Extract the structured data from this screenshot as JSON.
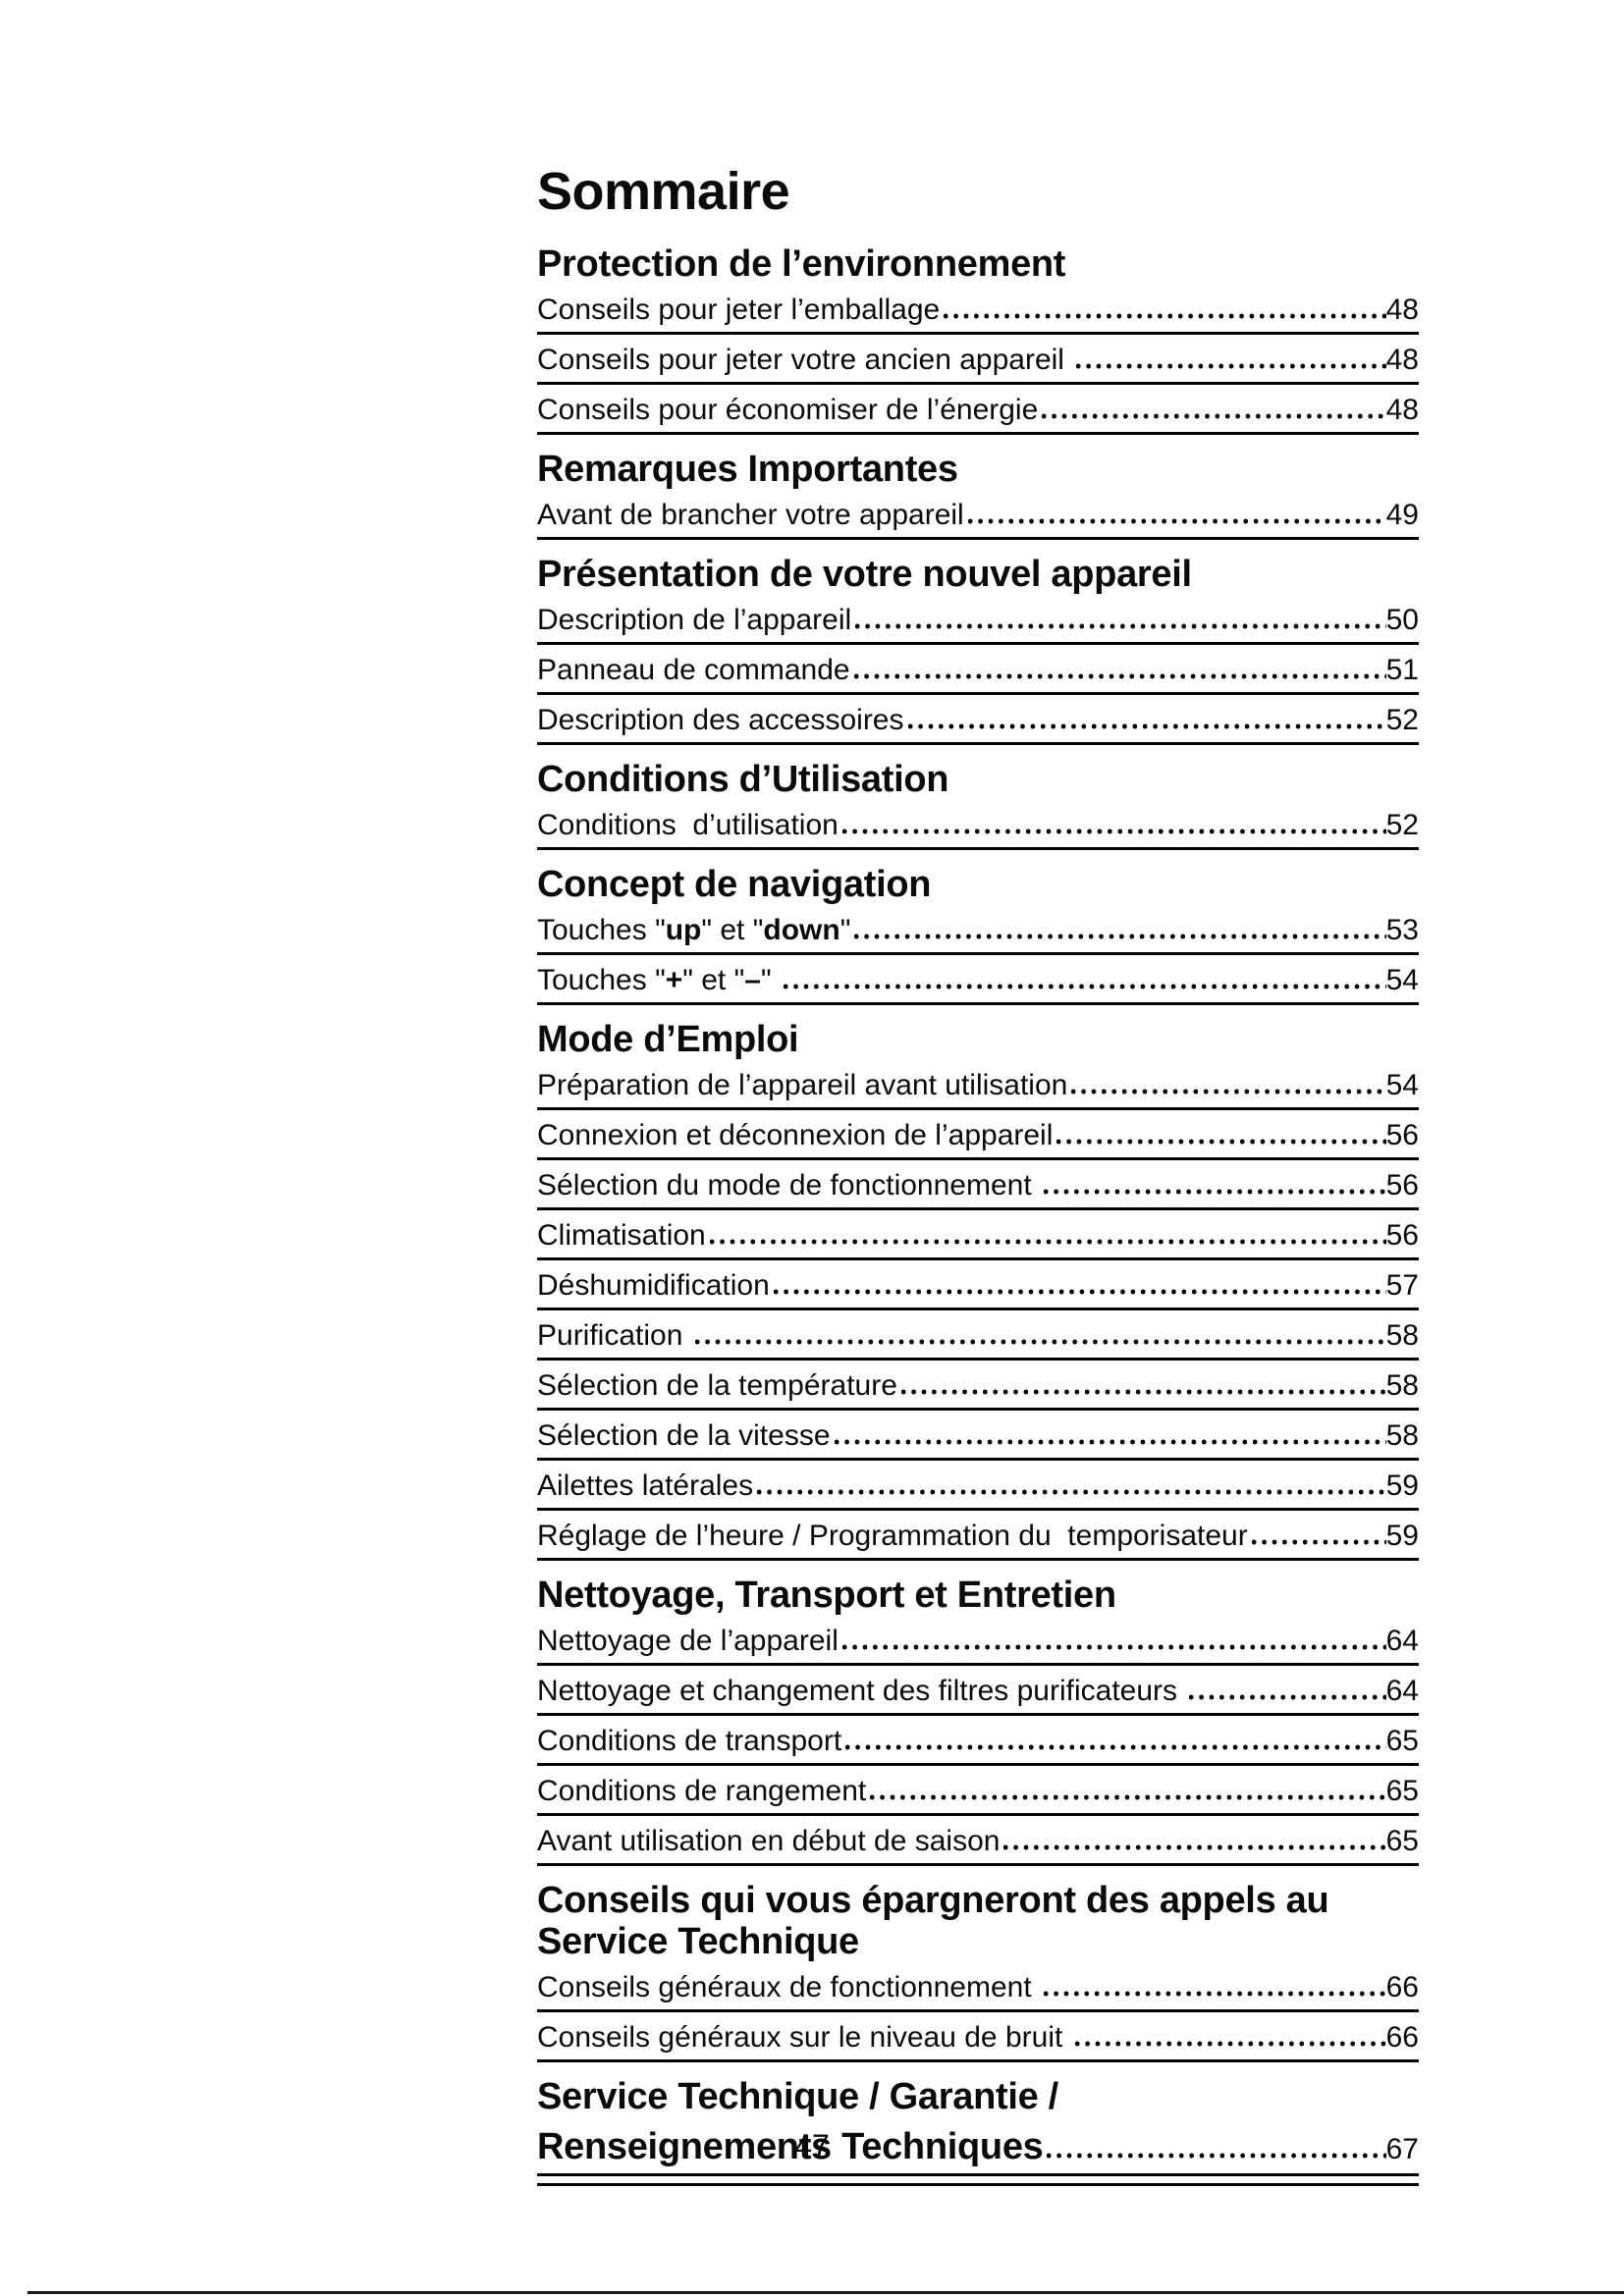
{
  "page": {
    "title": "Sommaire",
    "folio": "47"
  },
  "colors": {
    "ink": "#0b0b0b",
    "rule": "#000000",
    "paper": "#ffffff"
  },
  "toc": {
    "rows": [
      {
        "type": "heading",
        "text": "Protection de l’environnement"
      },
      {
        "type": "entry",
        "label": "Conseils pour jeter l’emballage",
        "page": "48"
      },
      {
        "type": "entry",
        "label": "Conseils pour jeter votre ancien appareil ",
        "page": "48"
      },
      {
        "type": "entry",
        "label": "Conseils pour économiser de l’énergie",
        "page": "48"
      },
      {
        "type": "heading",
        "text": "Remarques Importantes"
      },
      {
        "type": "entry",
        "label": "Avant de brancher votre appareil",
        "page": "49"
      },
      {
        "type": "heading",
        "text": "Présentation de votre nouvel appareil"
      },
      {
        "type": "entry",
        "label": "Description de l’appareil",
        "page": "50"
      },
      {
        "type": "entry",
        "label": "Panneau de commande",
        "page": "51"
      },
      {
        "type": "entry",
        "label": "Description des accessoires",
        "page": "52"
      },
      {
        "type": "heading",
        "text": "Conditions d’Utilisation"
      },
      {
        "type": "entry",
        "label": "Conditions  d’utilisation",
        "page": "52"
      },
      {
        "type": "heading",
        "text": "Concept de navigation"
      },
      {
        "type": "entry",
        "label": [
          {
            "t": "Touches \""
          },
          {
            "t": "up",
            "b": true
          },
          {
            "t": "\" et \""
          },
          {
            "t": "down",
            "b": true
          },
          {
            "t": "\""
          }
        ],
        "page": "53"
      },
      {
        "type": "entry",
        "label": [
          {
            "t": "Touches \""
          },
          {
            "t": "+",
            "b": true
          },
          {
            "t": "\" et \""
          },
          {
            "t": "–",
            "b": true
          },
          {
            "t": "\" "
          }
        ],
        "page": "54"
      },
      {
        "type": "heading",
        "text": "Mode d’Emploi"
      },
      {
        "type": "entry",
        "label": "Préparation de l’appareil avant utilisation",
        "page": "54"
      },
      {
        "type": "entry",
        "label": "Connexion et déconnexion de l’appareil",
        "page": "56"
      },
      {
        "type": "entry",
        "label": "Sélection du mode de fonctionnement ",
        "page": "56"
      },
      {
        "type": "entry",
        "label": "Climatisation",
        "page": "56"
      },
      {
        "type": "entry",
        "label": "Déshumidification",
        "page": "57"
      },
      {
        "type": "entry",
        "label": "Purification ",
        "page": "58"
      },
      {
        "type": "entry",
        "label": "Sélection de la température",
        "page": "58"
      },
      {
        "type": "entry",
        "label": "Sélection de la vitesse",
        "page": "58"
      },
      {
        "type": "entry",
        "label": "Ailettes latérales",
        "page": "59"
      },
      {
        "type": "entry",
        "label": "Réglage de l’heure / Programmation du  temporisateur",
        "page": "59"
      },
      {
        "type": "heading",
        "text": "Nettoyage, Transport et Entretien"
      },
      {
        "type": "entry",
        "label": "Nettoyage de l’appareil",
        "page": "64"
      },
      {
        "type": "entry",
        "label": "Nettoyage et changement des filtres purificateurs ",
        "page": "64"
      },
      {
        "type": "entry",
        "label": "Conditions de transport",
        "page": "65"
      },
      {
        "type": "entry",
        "label": "Conditions de rangement",
        "page": "65"
      },
      {
        "type": "entry",
        "label": "Avant utilisation en début de saison",
        "page": "65"
      },
      {
        "type": "heading",
        "text": "Conseils qui vous épargneront des appels au\nService Technique"
      },
      {
        "type": "entry",
        "label": "Conseils généraux de fonctionnement ",
        "page": "66"
      },
      {
        "type": "entry",
        "label": "Conseils généraux sur le niveau de bruit ",
        "page": "66"
      },
      {
        "type": "heading_entry",
        "lines": [
          "Service Technique / Garantie /",
          "Renseignements Techniques"
        ],
        "page": "67",
        "double_rule": true
      }
    ]
  }
}
